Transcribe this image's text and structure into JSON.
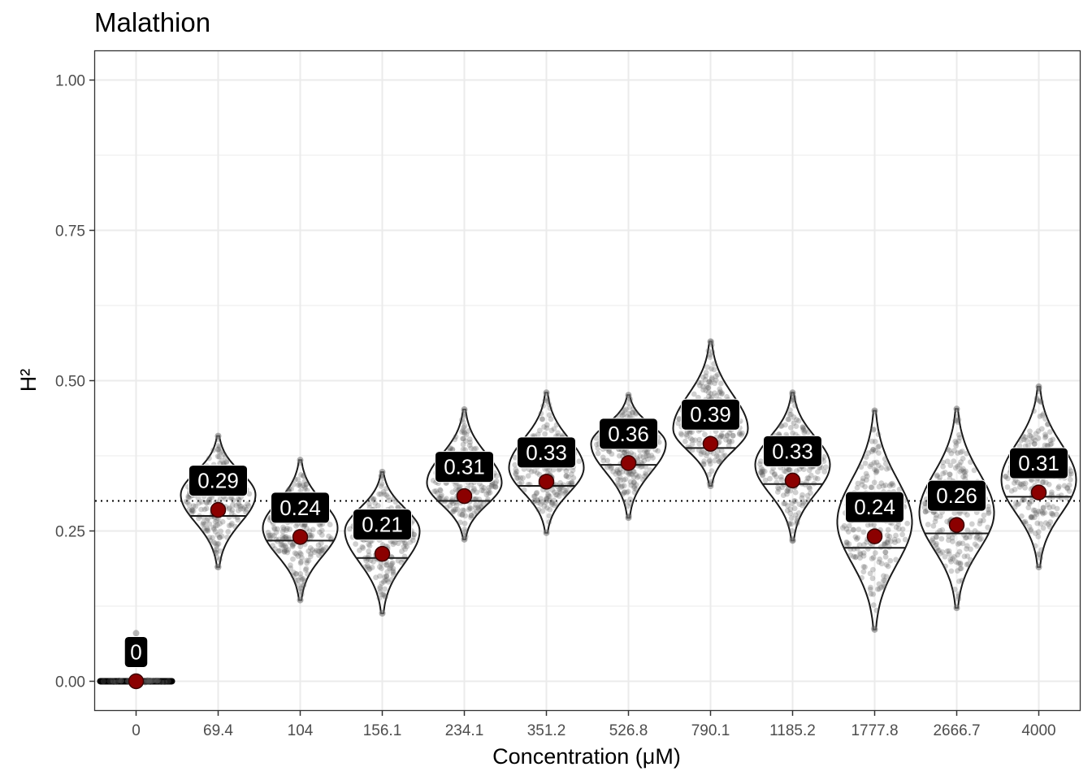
{
  "chart_data": {
    "type": "violin",
    "title": "Malathion",
    "xlabel": "Concentration (μM)",
    "ylabel": "H²",
    "ylim": [
      -0.048,
      1.048
    ],
    "yticks": [
      "0.00",
      "0.25",
      "0.50",
      "0.75",
      "1.00"
    ],
    "reference_line": 0.3,
    "grid": true,
    "categories": [
      "0",
      "69.4",
      "104",
      "156.1",
      "234.1",
      "351.2",
      "526.8",
      "790.1",
      "1185.2",
      "1777.8",
      "2666.7",
      "4000"
    ],
    "means": [
      0,
      0.285,
      0.24,
      0.212,
      0.308,
      0.332,
      0.363,
      0.395,
      0.334,
      0.241,
      0.26,
      0.314
    ],
    "medians": [
      0,
      0.275,
      0.234,
      0.205,
      0.3,
      0.325,
      0.36,
      0.388,
      0.328,
      0.222,
      0.246,
      0.307
    ],
    "mins": [
      0,
      0.19,
      0.135,
      0.113,
      0.236,
      0.247,
      0.272,
      0.325,
      0.234,
      0.086,
      0.122,
      0.19
    ],
    "maxs": [
      0.08,
      0.408,
      0.368,
      0.348,
      0.452,
      0.48,
      0.476,
      0.565,
      0.48,
      0.45,
      0.453,
      0.49
    ],
    "modes": [
      0,
      0.31,
      0.255,
      0.25,
      0.33,
      0.355,
      0.395,
      0.42,
      0.36,
      0.265,
      0.28,
      0.335
    ],
    "labels": [
      "0",
      "0.29",
      "0.24",
      "0.21",
      "0.31",
      "0.33",
      "0.36",
      "0.39",
      "0.33",
      "0.24",
      "0.26",
      "0.31"
    ],
    "colors": {
      "mean_point": "#8b0000",
      "violin_outline": "#1a1a1a",
      "points": "#555555",
      "label_bg": "#000000",
      "label_text": "#ffffff",
      "grid": "#ebebeb"
    }
  }
}
